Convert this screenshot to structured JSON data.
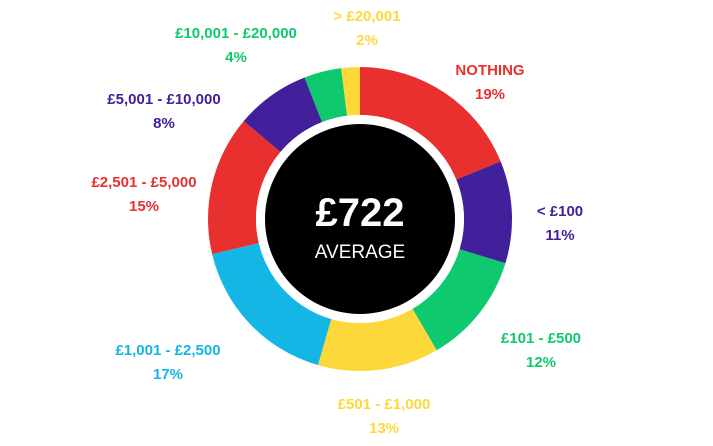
{
  "chart_data": {
    "type": "pie",
    "donut": true,
    "center": {
      "value": "£722",
      "label": "AVERAGE"
    },
    "slices": [
      {
        "label": "NOTHING",
        "value": 19,
        "value_label": "19%",
        "color": "#e8312f"
      },
      {
        "label": "< £100",
        "value": 11,
        "value_label": "11%",
        "color": "#42209b"
      },
      {
        "label": "£101 - £500",
        "value": 12,
        "value_label": "12%",
        "color": "#0ec96d"
      },
      {
        "label": "£501 - £1,000",
        "value": 13,
        "value_label": "13%",
        "color": "#fdd83b"
      },
      {
        "label": "£1,001 - £2,500",
        "value": 17,
        "value_label": "17%",
        "color": "#13b6e5"
      },
      {
        "label": "£2,501 - £5,000",
        "value": 15,
        "value_label": "15%",
        "color": "#e8312f"
      },
      {
        "label": "£5,001 - £10,000",
        "value": 8,
        "value_label": "8%",
        "color": "#42209b"
      },
      {
        "label": "£10,001 - £20,000",
        "value": 4,
        "value_label": "4%",
        "color": "#0ec96d"
      },
      {
        "label": "> £20,001",
        "value": 2,
        "value_label": "2%",
        "color": "#fdd83b"
      }
    ]
  }
}
